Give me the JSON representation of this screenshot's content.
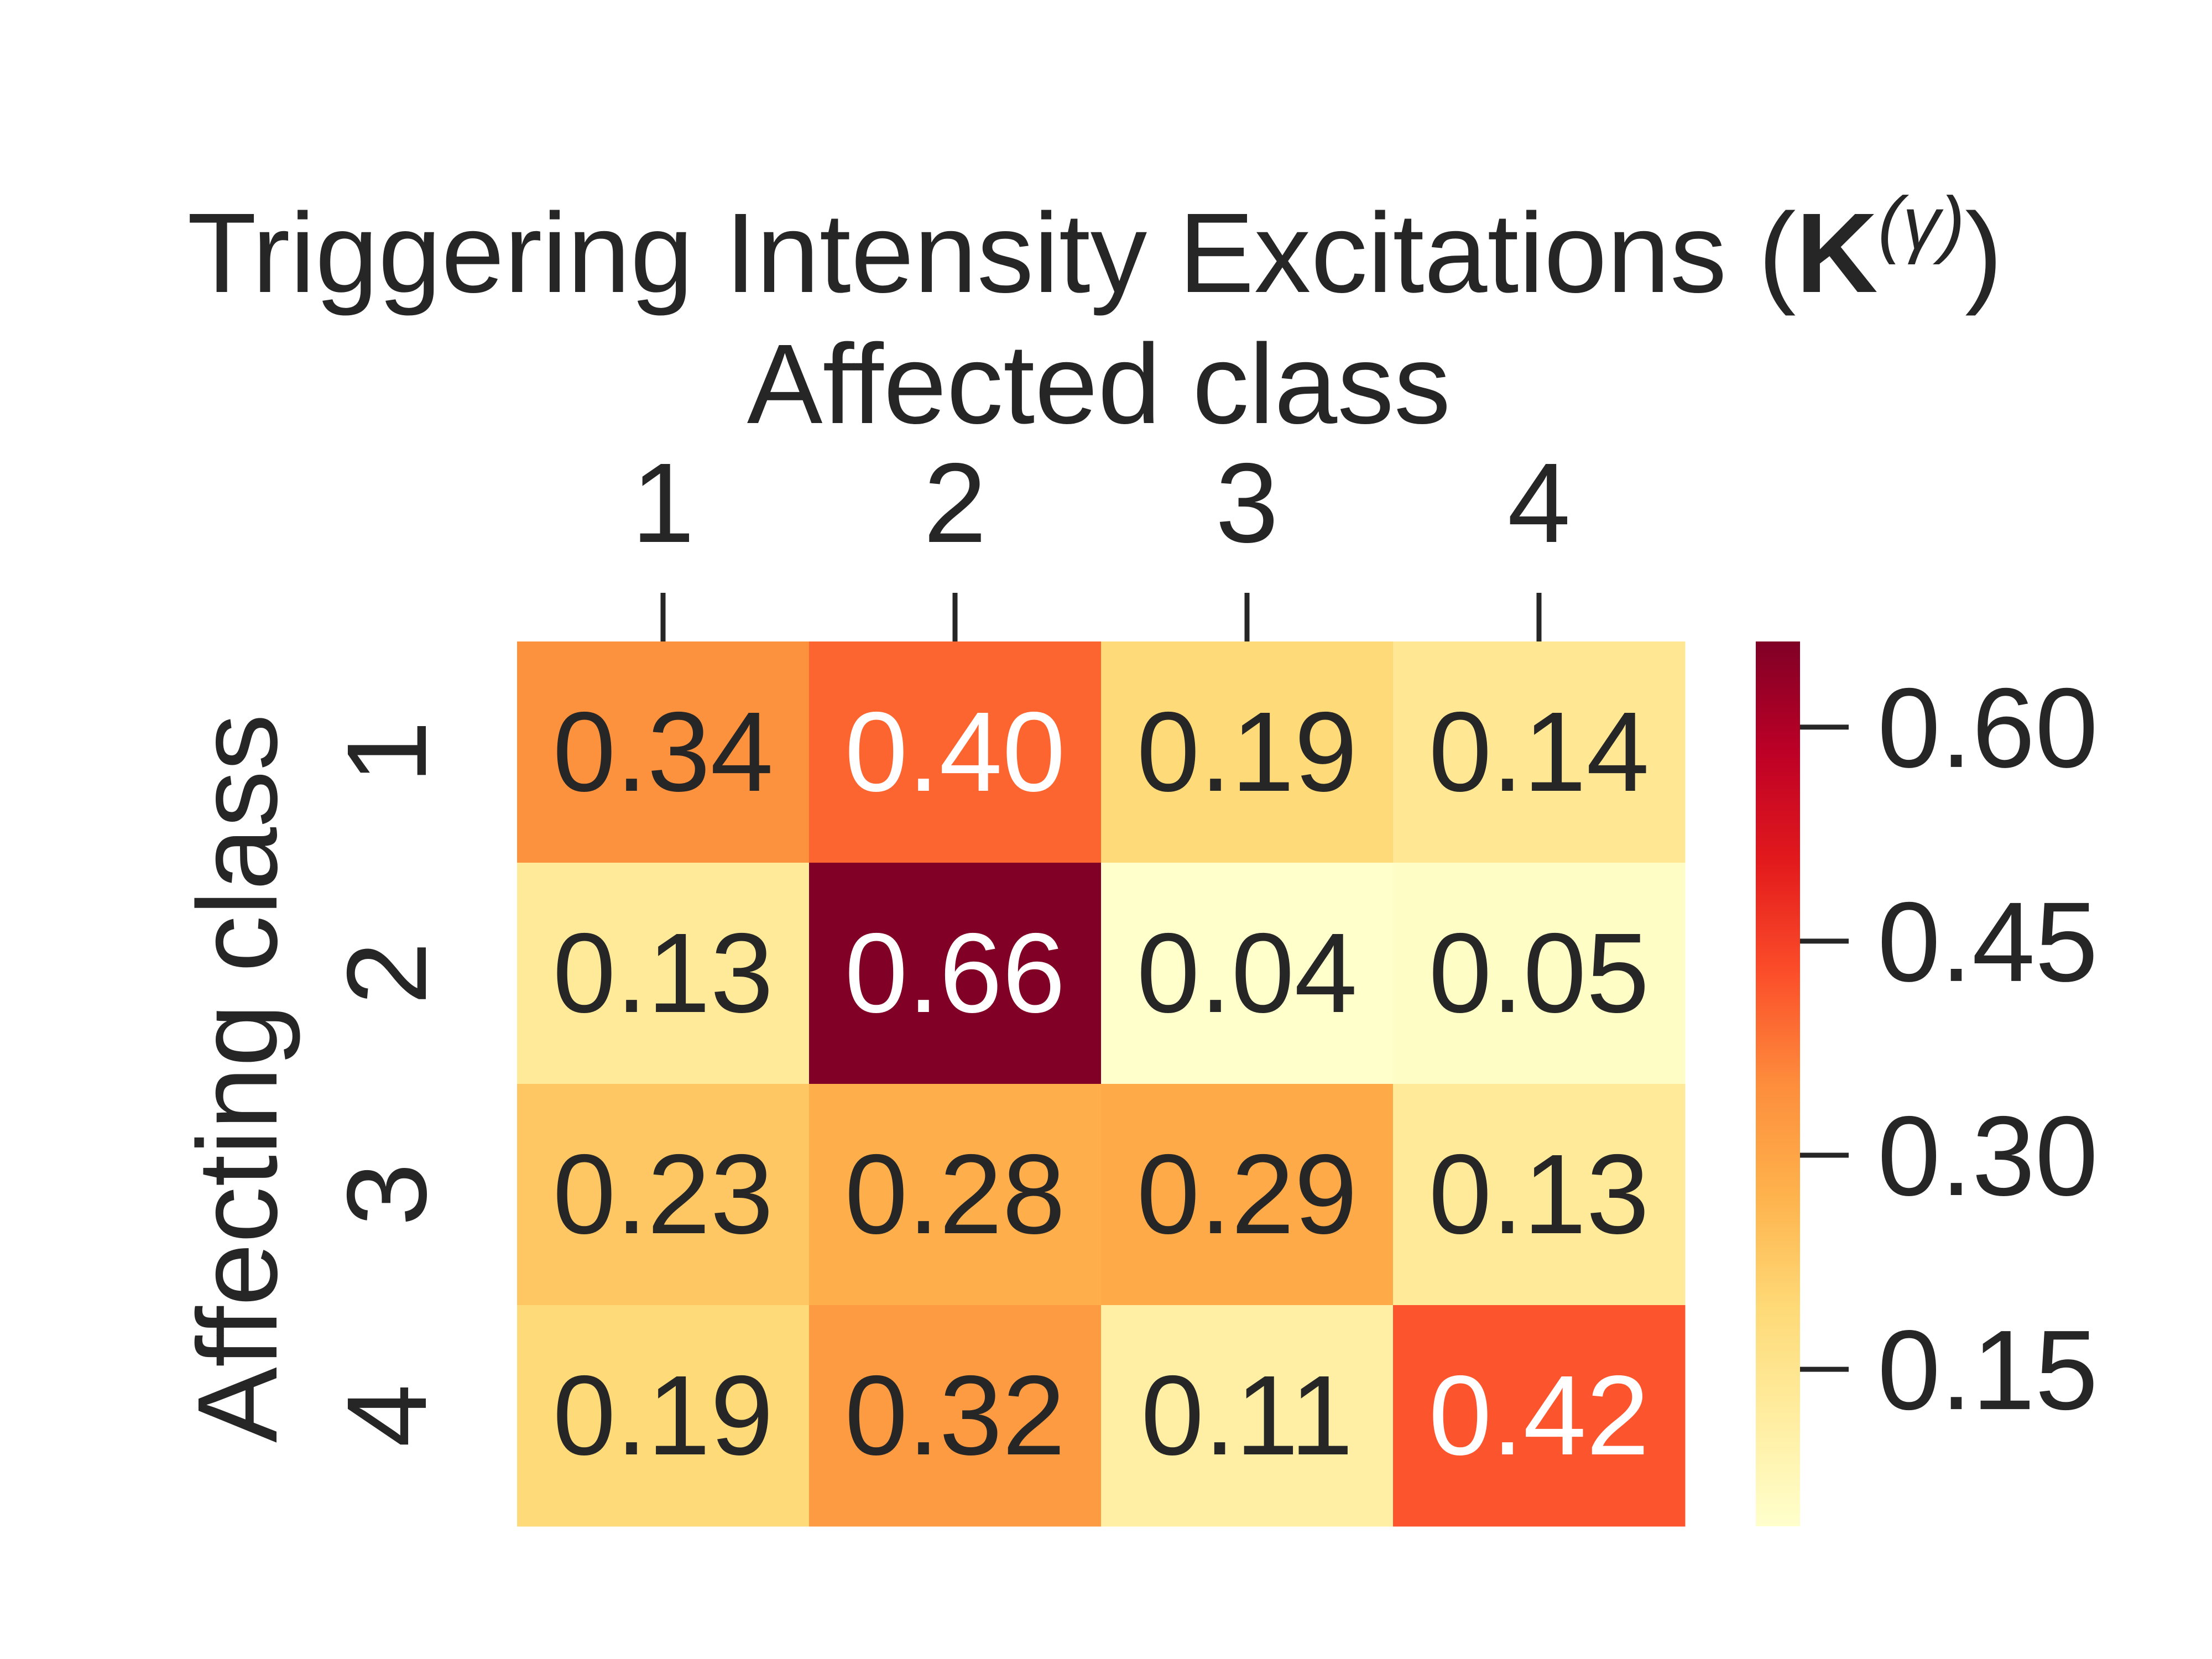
{
  "chart_data": {
    "type": "heatmap",
    "title": "Triggering Intensity Excitations (",
    "title_symbol": "K",
    "title_superscript": "(γ)",
    "title_close": ")",
    "xlabel": "Affected class",
    "ylabel": "Affecting class",
    "x_categories": [
      "1",
      "2",
      "3",
      "4"
    ],
    "y_categories": [
      "1",
      "2",
      "3",
      "4"
    ],
    "values": [
      [
        0.34,
        0.4,
        0.19,
        0.14
      ],
      [
        0.13,
        0.66,
        0.04,
        0.05
      ],
      [
        0.23,
        0.28,
        0.29,
        0.13
      ],
      [
        0.19,
        0.32,
        0.11,
        0.42
      ]
    ],
    "value_labels": [
      [
        "0.34",
        "0.40",
        "0.19",
        "0.14"
      ],
      [
        "0.13",
        "0.66",
        "0.04",
        "0.05"
      ],
      [
        "0.23",
        "0.28",
        "0.29",
        "0.13"
      ],
      [
        "0.19",
        "0.32",
        "0.11",
        "0.42"
      ]
    ],
    "colormap": "YlOrRd",
    "colorbar": {
      "min": 0.04,
      "max": 0.66,
      "ticks": [
        0.15,
        0.3,
        0.45,
        0.6
      ],
      "tick_labels": [
        "0.15",
        "0.30",
        "0.45",
        "0.60"
      ]
    },
    "colors": {
      "dark_text": "#262626",
      "light_text": "#ffffff"
    }
  }
}
